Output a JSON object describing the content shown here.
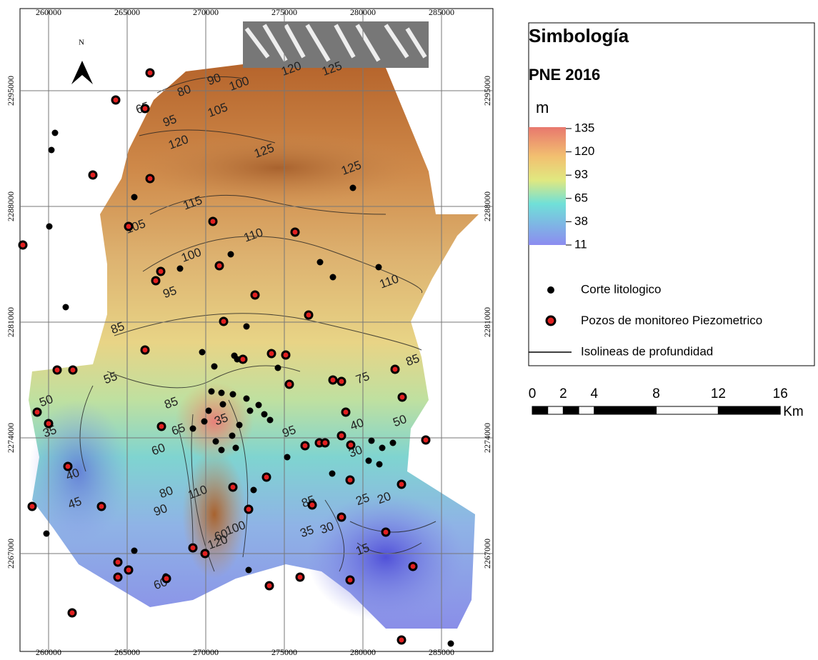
{
  "map": {
    "grid": {
      "eastings": [
        260000,
        265000,
        270000,
        275000,
        280000,
        285000
      ],
      "northings": [
        2295000,
        2288000,
        2281000,
        2274000,
        2267000
      ]
    },
    "north": "N",
    "contour_labels": [
      "80",
      "90",
      "100",
      "105",
      "95",
      "65",
      "120",
      "125",
      "120",
      "125",
      "125",
      "115",
      "105",
      "110",
      "100",
      "95",
      "110",
      "85",
      "85",
      "55",
      "75",
      "50",
      "50",
      "35",
      "35",
      "40",
      "30",
      "65",
      "60",
      "85",
      "95",
      "90",
      "80",
      "110",
      "120",
      "100",
      "60",
      "85",
      "25",
      "20",
      "35",
      "30",
      "15",
      "60",
      "40",
      "45"
    ]
  },
  "legend": {
    "title": "Simbología",
    "layer": "PNE 2016",
    "unit": "m",
    "ramp": [
      135,
      120,
      93,
      65,
      38,
      11
    ],
    "items": [
      "Corte litologico",
      "Pozos de monitoreo Piezometrico",
      "Isolineas de profundidad"
    ]
  },
  "scale_bar": {
    "ticks": [
      0,
      2,
      4,
      8,
      12,
      16
    ],
    "unit": "Km"
  }
}
